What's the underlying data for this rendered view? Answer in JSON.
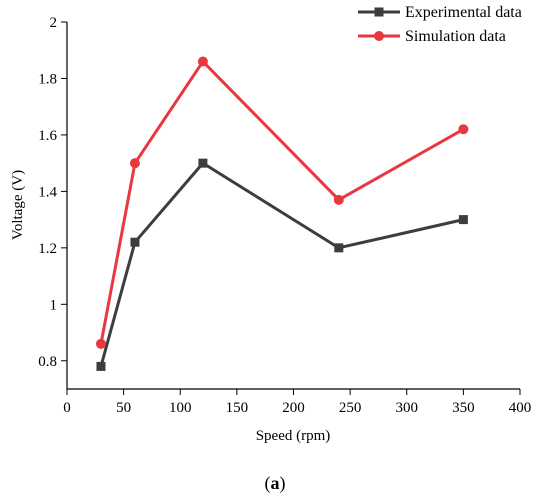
{
  "chart_data": {
    "type": "line",
    "xlabel": "Speed (rpm)",
    "ylabel": "Voltage (V)",
    "xlim": [
      0,
      400
    ],
    "ylim": [
      0.7,
      2.0
    ],
    "xticks": [
      "0",
      "50",
      "100",
      "150",
      "200",
      "250",
      "300",
      "350",
      "400"
    ],
    "yticks": [
      "0.8",
      "1",
      "1.2",
      "1.4",
      "1.6",
      "1.8",
      "2"
    ],
    "xtick_values": [
      0,
      50,
      100,
      150,
      200,
      250,
      300,
      350,
      400
    ],
    "ytick_values": [
      0.8,
      1.0,
      1.2,
      1.4,
      1.6,
      1.8,
      2.0
    ],
    "grid": false,
    "legend_position": "top-right",
    "series": [
      {
        "name": "Experimental data",
        "color": "#3d3d3d",
        "marker": "square",
        "x": [
          30,
          60,
          120,
          240,
          350
        ],
        "y": [
          0.78,
          1.22,
          1.5,
          1.2,
          1.3
        ]
      },
      {
        "name": "Simulation data",
        "color": "#e8383f",
        "marker": "circle",
        "x": [
          30,
          60,
          120,
          240,
          350
        ],
        "y": [
          0.86,
          1.5,
          1.86,
          1.37,
          1.62
        ]
      }
    ]
  },
  "caption": {
    "open": "(",
    "letter": "a",
    "close": ")"
  }
}
